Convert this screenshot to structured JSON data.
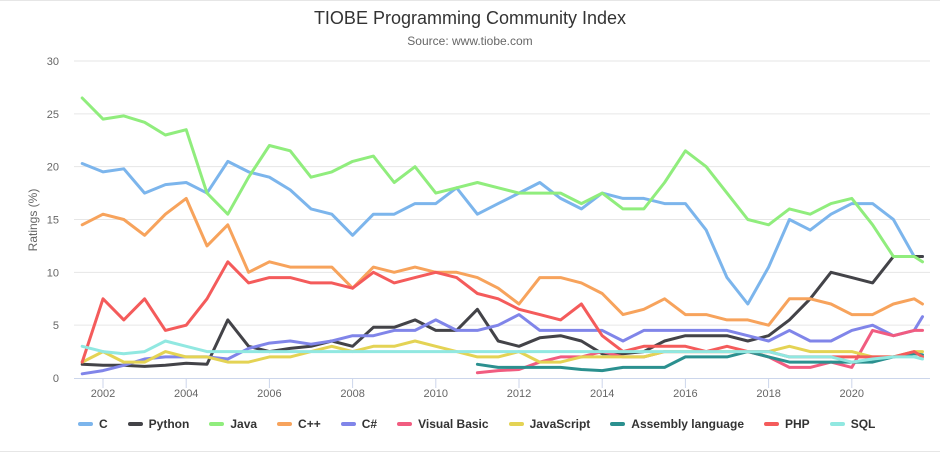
{
  "chart_data": {
    "type": "line",
    "title": "TIOBE Programming Community Index",
    "subtitle": "Source: www.tiobe.com",
    "ylabel": "Ratings (%)",
    "xlabel": "",
    "ylim": [
      0,
      30
    ],
    "yticks": [
      0,
      5,
      10,
      15,
      20,
      25,
      30
    ],
    "xticks": [
      2002,
      2004,
      2006,
      2008,
      2010,
      2012,
      2014,
      2016,
      2018,
      2020
    ],
    "grid": true,
    "legend": "bottom",
    "x": [
      2001.5,
      2002,
      2002.5,
      2003,
      2003.5,
      2004,
      2004.5,
      2005,
      2005.5,
      2006,
      2006.5,
      2007,
      2007.5,
      2008,
      2008.5,
      2009,
      2009.5,
      2010,
      2010.5,
      2011,
      2011.5,
      2012,
      2012.5,
      2013,
      2013.5,
      2014,
      2014.5,
      2015,
      2015.5,
      2016,
      2016.5,
      2017,
      2017.5,
      2018,
      2018.5,
      2019,
      2019.5,
      2020,
      2020.5,
      2021,
      2021.5,
      2021.7
    ],
    "series": [
      {
        "name": "C",
        "color": "#7cb5ec",
        "values": [
          20.3,
          19.5,
          19.8,
          17.5,
          18.3,
          18.5,
          17.5,
          20.5,
          19.5,
          19,
          17.8,
          16,
          15.5,
          13.5,
          15.5,
          15.5,
          16.5,
          16.5,
          18,
          15.5,
          16.5,
          17.5,
          18.5,
          17,
          16,
          17.5,
          17,
          17,
          16.5,
          16.5,
          14,
          9.5,
          7,
          10.5,
          15,
          14,
          15.5,
          16.5,
          16.5,
          15,
          11.5,
          11.5
        ]
      },
      {
        "name": "Python",
        "color": "#434348",
        "values": [
          1.3,
          1.2,
          1.2,
          1.1,
          1.2,
          1.4,
          1.3,
          5.5,
          3,
          2.5,
          2.8,
          3,
          3.5,
          3,
          4.8,
          4.8,
          5.5,
          4.5,
          4.5,
          6.5,
          3.5,
          3,
          3.8,
          4,
          3.5,
          2.3,
          2.3,
          2.5,
          3.5,
          4,
          4,
          4,
          3.5,
          4,
          5.5,
          7.5,
          10,
          9.5,
          9,
          11.5,
          11.5,
          11.5
        ]
      },
      {
        "name": "Java",
        "color": "#90ed7d",
        "values": [
          26.5,
          24.5,
          24.8,
          24.2,
          23,
          23.5,
          17.5,
          15.5,
          19,
          22,
          21.5,
          19,
          19.5,
          20.5,
          21,
          18.5,
          20,
          17.5,
          18,
          18.5,
          18,
          17.5,
          17.5,
          17.5,
          16.5,
          17.5,
          16,
          16,
          18.5,
          21.5,
          20,
          17.5,
          15,
          14.5,
          16,
          15.5,
          16.5,
          17,
          14.5,
          11.5,
          11.5,
          11
        ]
      },
      {
        "name": "C++",
        "color": "#f7a35c",
        "values": [
          14.5,
          15.5,
          15,
          13.5,
          15.5,
          17,
          12.5,
          14.5,
          10,
          11,
          10.5,
          10.5,
          10.5,
          8.5,
          10.5,
          10,
          10.5,
          10,
          10,
          9.5,
          8.5,
          7,
          9.5,
          9.5,
          9,
          8,
          6,
          6.5,
          7.5,
          6,
          6,
          5.5,
          5.5,
          5,
          7.5,
          7.5,
          7,
          6,
          6,
          7,
          7.5,
          7
        ]
      },
      {
        "name": "C#",
        "color": "#8085e9",
        "values": [
          0.4,
          0.7,
          1.2,
          1.8,
          2,
          2,
          2,
          1.8,
          2.8,
          3.3,
          3.5,
          3.2,
          3.5,
          4,
          4,
          4.5,
          4.5,
          5.5,
          4.5,
          4.5,
          5,
          6,
          4.5,
          4.5,
          4.5,
          4.5,
          3.5,
          4.5,
          4.5,
          4.5,
          4.5,
          4.5,
          4,
          3.5,
          4.5,
          3.5,
          3.5,
          4.5,
          5,
          4,
          4.5,
          5.8
        ]
      },
      {
        "name": "Visual Basic",
        "color": "#f15c80",
        "values": [
          null,
          null,
          null,
          null,
          null,
          null,
          null,
          null,
          null,
          null,
          null,
          null,
          null,
          null,
          null,
          null,
          null,
          null,
          null,
          0.5,
          0.7,
          0.8,
          1.5,
          2,
          2,
          2.5,
          2,
          2,
          2.5,
          2.5,
          2.5,
          2.5,
          2.5,
          2,
          1,
          1,
          1.5,
          1,
          4.5,
          4,
          4.5,
          4.5
        ]
      },
      {
        "name": "JavaScript",
        "color": "#e4d354",
        "values": [
          1.5,
          2.5,
          1.5,
          1.5,
          2.5,
          2,
          2,
          1.5,
          1.5,
          2,
          2,
          2.5,
          3,
          2.5,
          3,
          3,
          3.5,
          3,
          2.5,
          2,
          2,
          2.5,
          1.5,
          1.5,
          2,
          2,
          2,
          2,
          2.5,
          2.5,
          2.5,
          2.5,
          2.5,
          2.5,
          3,
          2.5,
          2.5,
          2.5,
          2,
          2,
          2.5,
          2.5
        ]
      },
      {
        "name": "Assembly language",
        "color": "#2b908f",
        "values": [
          null,
          null,
          null,
          null,
          null,
          null,
          null,
          null,
          null,
          null,
          null,
          null,
          null,
          null,
          null,
          null,
          null,
          null,
          null,
          1.3,
          1,
          1,
          1,
          1,
          0.8,
          0.7,
          1,
          1,
          1,
          2,
          2,
          2,
          2.5,
          2,
          1.5,
          1.5,
          1.5,
          1.5,
          1.5,
          2,
          2.3,
          2.2
        ]
      },
      {
        "name": "PHP",
        "color": "#f45b5b",
        "values": [
          1.5,
          7.5,
          5.5,
          7.5,
          4.5,
          5,
          7.5,
          11,
          9,
          9.5,
          9.5,
          9,
          9,
          8.5,
          10,
          9,
          9.5,
          10,
          9.5,
          8,
          7.5,
          6.5,
          6,
          5.5,
          7,
          4,
          2.5,
          3,
          3,
          3,
          2.5,
          3,
          2.5,
          2.5,
          2,
          2,
          2,
          2,
          2,
          2,
          2.5,
          2
        ]
      },
      {
        "name": "SQL",
        "color": "#91e8e1",
        "values": [
          3,
          2.5,
          2.3,
          2.5,
          3.5,
          3,
          2.5,
          2.5,
          2.5,
          2.5,
          2.5,
          2.5,
          2.5,
          2.5,
          2.5,
          2.5,
          2.5,
          2.5,
          2.5,
          2.5,
          2.5,
          2.5,
          2.5,
          2.5,
          2.5,
          2.5,
          2.5,
          2.5,
          2.5,
          2.5,
          2.5,
          2.5,
          2.5,
          2.5,
          2,
          2,
          2,
          1.5,
          1.8,
          2,
          2,
          1.8
        ]
      }
    ]
  }
}
